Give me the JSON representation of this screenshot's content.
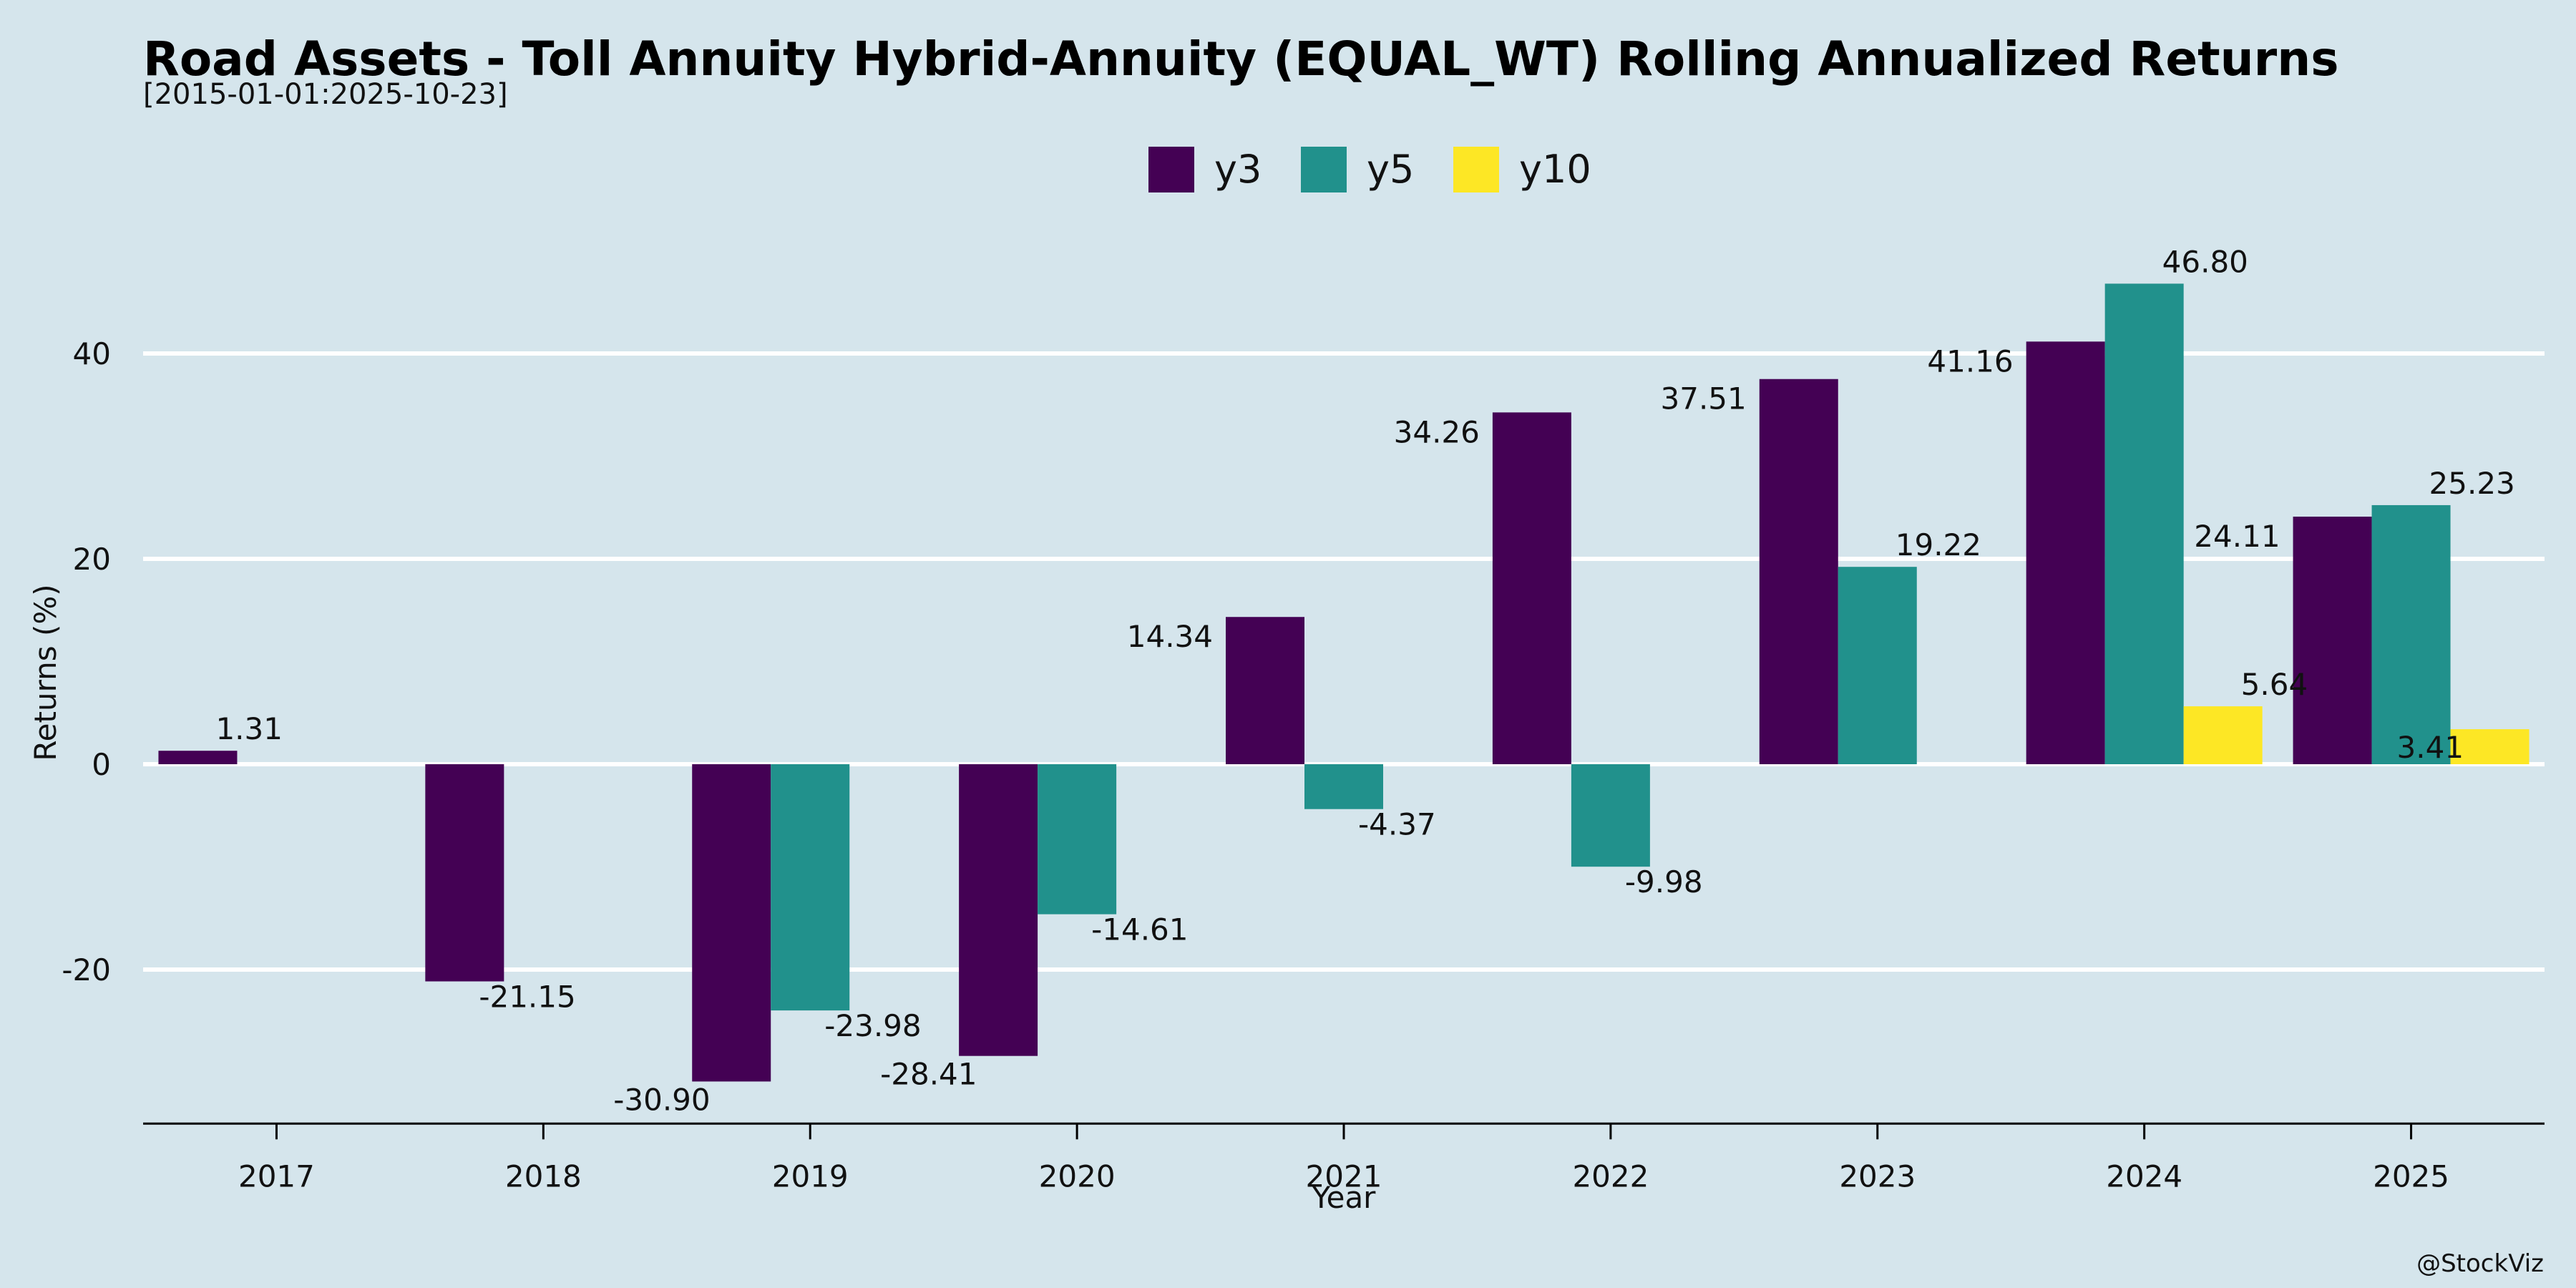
{
  "chart_data": {
    "type": "bar",
    "title": "Road Assets - Toll Annuity Hybrid-Annuity (EQUAL_WT) Rolling Annualized Returns",
    "subtitle": "[2015-01-01:2025-10-23]",
    "xlabel": "Year",
    "ylabel": "Returns (%)",
    "credit": "@StockViz",
    "categories": [
      "2017",
      "2018",
      "2019",
      "2020",
      "2021",
      "2022",
      "2023",
      "2024",
      "2025"
    ],
    "ylim": [
      -35,
      50
    ],
    "yticks": [
      -20,
      0,
      20,
      40
    ],
    "grid": true,
    "legend_position": "top-center",
    "series": [
      {
        "name": "y3",
        "color": "#440154",
        "values": [
          1.31,
          -21.15,
          -30.9,
          -28.41,
          14.34,
          34.26,
          37.51,
          41.16,
          24.11
        ],
        "labels": [
          "1.31",
          "-21.15",
          "-30.90",
          "-28.41",
          "14.34",
          "34.26",
          "37.51",
          "41.16",
          "24.11"
        ]
      },
      {
        "name": "y5",
        "color": "#21918c",
        "values": [
          null,
          null,
          -23.98,
          -14.61,
          -4.37,
          -9.98,
          19.22,
          46.8,
          25.23
        ],
        "labels": [
          null,
          null,
          "-23.98",
          "-14.61",
          "-4.37",
          "-9.98",
          "19.22",
          "46.80",
          "25.23"
        ]
      },
      {
        "name": "y10",
        "color": "#fde725",
        "values": [
          null,
          null,
          null,
          null,
          null,
          null,
          null,
          5.64,
          3.41
        ],
        "labels": [
          null,
          null,
          null,
          null,
          null,
          null,
          null,
          "5.64",
          "3.41"
        ]
      }
    ]
  }
}
